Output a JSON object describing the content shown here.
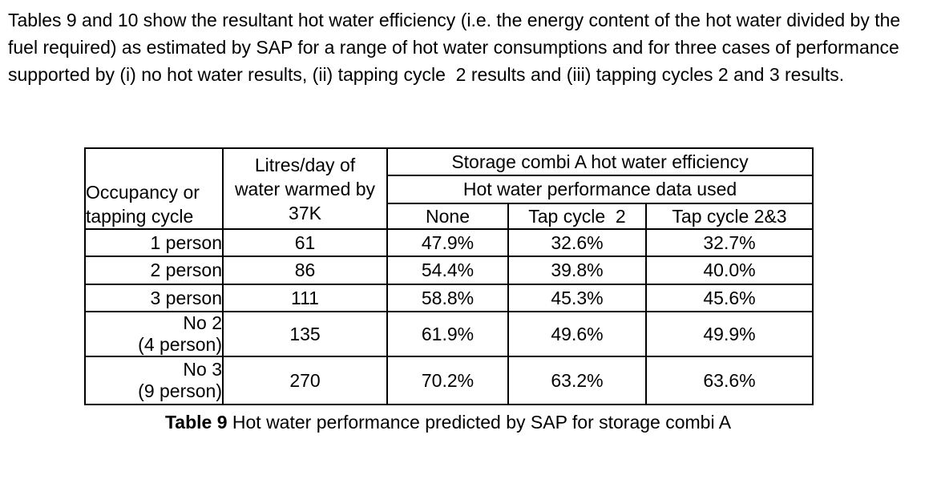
{
  "page": {
    "intro_paragraph": "Tables 9 and 10 show the resultant hot water efficiency (i.e. the energy content of the hot water divided by the fuel required) as estimated by SAP for a range of hot water consumptions and for three cases of performance supported by (i) no hot water results, (ii) tapping cycle  2 results and (iii) tapping cycles 2 and 3 results."
  },
  "table": {
    "corner_header": "Occupancy or\ntapping cycle",
    "litres_header": "Litres/day of\nwater warmed by\n37K",
    "group_header": "Storage combi A hot water efficiency",
    "subgroup_header": "Hot water performance data used",
    "data_col_headers": [
      "None",
      "Tap cycle  2",
      "Tap cycle 2&3"
    ],
    "rows": [
      {
        "occupancy": "1 person",
        "litres": "61",
        "none": "47.9%",
        "tap_cycle_2": "32.6%",
        "tap_cycle_2_3": "32.7%"
      },
      {
        "occupancy": "2 person",
        "litres": "86",
        "none": "54.4%",
        "tap_cycle_2": "39.8%",
        "tap_cycle_2_3": "40.0%"
      },
      {
        "occupancy": "3 person",
        "litres": "111",
        "none": "58.8%",
        "tap_cycle_2": "45.3%",
        "tap_cycle_2_3": "45.6%"
      },
      {
        "occupancy": "No 2\n(4 person)",
        "litres": "135",
        "none": "61.9%",
        "tap_cycle_2": "49.6%",
        "tap_cycle_2_3": "49.9%"
      },
      {
        "occupancy": "No 3\n(9 person)",
        "litres": "270",
        "none": "70.2%",
        "tap_cycle_2": "63.2%",
        "tap_cycle_2_3": "63.6%"
      }
    ],
    "caption": {
      "label": "Table 9",
      "text": " Hot water performance predicted by SAP for storage combi A"
    }
  },
  "colors": {
    "text": "#000000",
    "background": "#ffffff",
    "border": "#000000"
  }
}
